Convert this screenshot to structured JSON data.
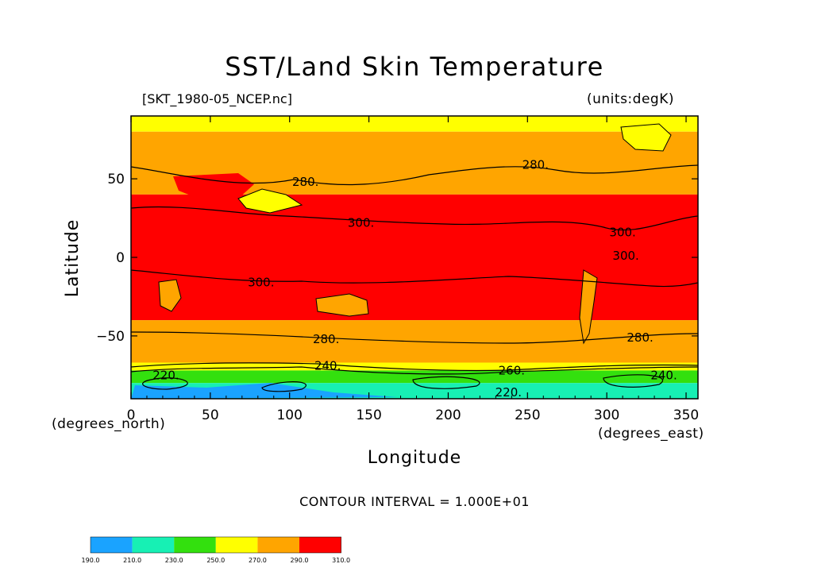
{
  "chart_data": {
    "type": "heatmap",
    "title": "SST/Land Skin Temperature",
    "file_label": "[SKT_1980-05_NCEP.nc]",
    "units_label": "(units:degK)",
    "xlabel": "Longitude",
    "ylabel": "Latitude",
    "x_units": "(degrees_east)",
    "y_units": "(degrees_north)",
    "xlim": [
      0,
      357.5
    ],
    "ylim": [
      -90,
      90
    ],
    "x_ticks": [
      0,
      50,
      100,
      150,
      200,
      250,
      300,
      350
    ],
    "y_ticks": [
      -50,
      0,
      50
    ],
    "contour_interval_text": "CONTOUR INTERVAL = 1.000E+01",
    "colorbar": {
      "levels": [
        "190.0",
        "210.0",
        "230.0",
        "250.0",
        "270.0",
        "290.0",
        "310.0"
      ],
      "colors": [
        "#1aa3ff",
        "#17f0b4",
        "#33e00e",
        "#ffff00",
        "#ffa500",
        "#ff0000"
      ]
    },
    "zonal_bands": [
      {
        "lat_range": [
          80,
          90
        ],
        "range_degK": "250-270"
      },
      {
        "lat_range": [
          40,
          80
        ],
        "range_degK": "270-290"
      },
      {
        "lat_range": [
          -40,
          40
        ],
        "range_degK": "290-310"
      },
      {
        "lat_range": [
          -67,
          -40
        ],
        "range_degK": "270-290"
      },
      {
        "lat_range": [
          -72,
          -67
        ],
        "range_degK": "250-270"
      },
      {
        "lat_range": [
          -80,
          -72
        ],
        "range_degK": "230-250"
      },
      {
        "lat_range": [
          -90,
          -80
        ],
        "range_degK": "190-230"
      }
    ],
    "contour_labels": [
      {
        "text": "280.",
        "lon": 110,
        "lat": 48
      },
      {
        "text": "280.",
        "lon": 255,
        "lat": 59
      },
      {
        "text": "300.",
        "lon": 145,
        "lat": 22
      },
      {
        "text": "300.",
        "lon": 310,
        "lat": 16
      },
      {
        "text": "300.",
        "lon": 312,
        "lat": 1
      },
      {
        "text": "300.",
        "lon": 82,
        "lat": -16
      },
      {
        "text": "280.",
        "lon": 123,
        "lat": -52
      },
      {
        "text": "280.",
        "lon": 321,
        "lat": -51
      },
      {
        "text": "240.",
        "lon": 124,
        "lat": -69
      },
      {
        "text": "260.",
        "lon": 240,
        "lat": -72
      },
      {
        "text": "240.",
        "lon": 336,
        "lat": -75
      },
      {
        "text": "220.",
        "lon": 22,
        "lat": -75
      },
      {
        "text": "220.",
        "lon": 238,
        "lat": -86
      }
    ]
  }
}
